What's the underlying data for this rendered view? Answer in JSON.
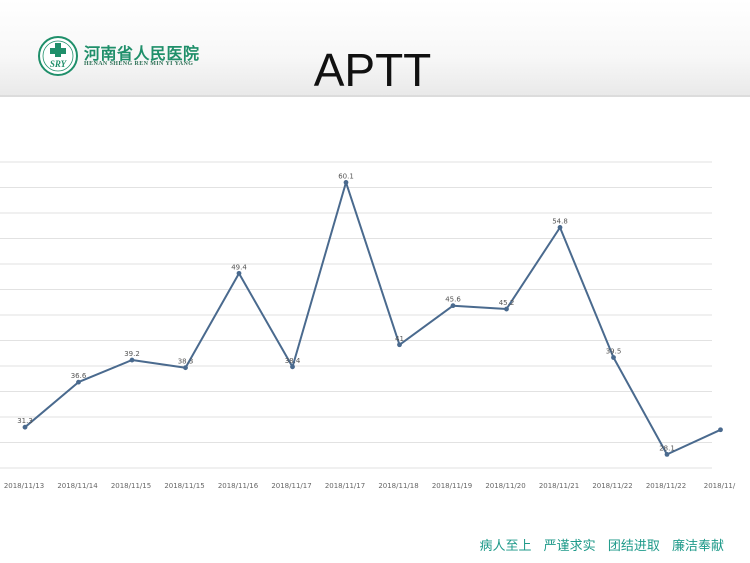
{
  "header": {
    "org_name_cn": "河南省人民医院",
    "org_name_en": "HENAN SHENG REN MIN YI YANG",
    "logo_text": "SRY"
  },
  "title": "APTT",
  "colors": {
    "line": "#4a6a8e",
    "grid": "#e2e2e2",
    "brand_green": "#1f8f6a",
    "slogan": "#1f9a8a"
  },
  "chart_data": {
    "type": "line",
    "title": "APTT",
    "xlabel": "",
    "ylabel": "",
    "categories": [
      "2018/11/13",
      "2018/11/14",
      "2018/11/15",
      "2018/11/15",
      "2018/11/16",
      "2018/11/17",
      "2018/11/17",
      "2018/11/18",
      "2018/11/19",
      "2018/11/20",
      "2018/11/21",
      "2018/11/22",
      "2018/11/22",
      "2018/11/"
    ],
    "series": [
      {
        "values": [
          31.3,
          36.6,
          39.2,
          38.3,
          49.4,
          38.4,
          60.1,
          41.0,
          45.6,
          45.2,
          54.8,
          39.5,
          28.1,
          31.0
        ],
        "labels": [
          "31.3",
          "36.6",
          "39.2",
          "38.3",
          "49.4",
          "38.4",
          "60.1",
          "41",
          "45.6",
          "45.2",
          "54.8",
          "39.5",
          "28.1",
          ""
        ]
      }
    ],
    "ylim": [
      26.5,
      62.5
    ],
    "grid": true
  },
  "footer": {
    "slogans": [
      "病人至上",
      "严谨求实",
      "团结进取",
      "廉洁奉献"
    ]
  }
}
